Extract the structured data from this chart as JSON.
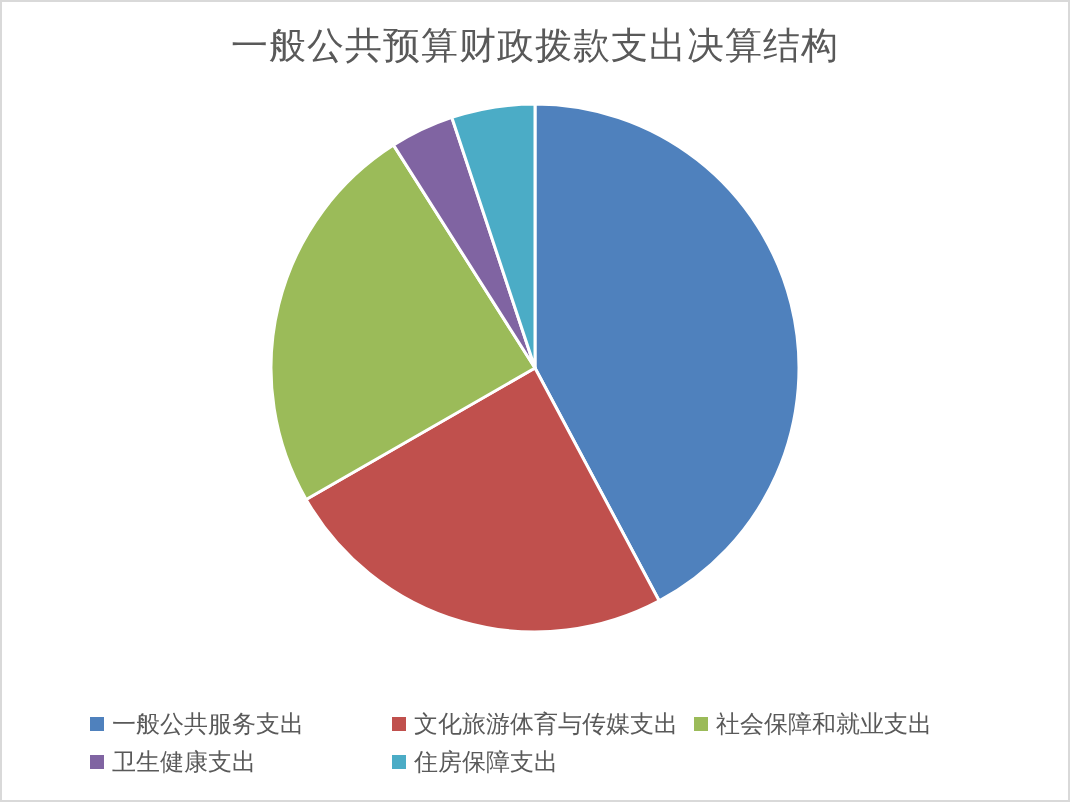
{
  "chart_data": {
    "type": "pie",
    "title": "一般公共预算财政拨款支出决算结构",
    "categories": [
      "一般公共服务支出",
      "文化旅游体育与传媒支出",
      "社会保障和就业支出",
      "卫生健康支出",
      "住房保障支出"
    ],
    "values": [
      42.2,
      24.5,
      24.3,
      3.9,
      5.1
    ],
    "colors": [
      "#4f81bd",
      "#c0504d",
      "#9bbb59",
      "#8064a2",
      "#4bacc6"
    ],
    "legend": "bottom"
  }
}
